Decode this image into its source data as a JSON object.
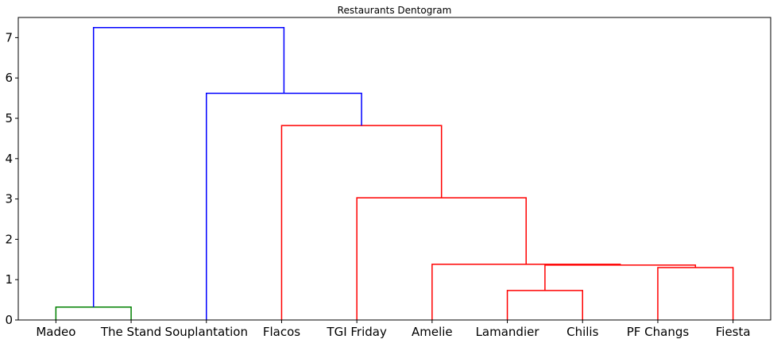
{
  "chart_data": {
    "type": "dendrogram",
    "title": "Restaurants Dentogram",
    "xlabel": "",
    "ylabel": "",
    "ylim": [
      0,
      7.5
    ],
    "yticks": [
      0,
      1,
      2,
      3,
      4,
      5,
      6,
      7
    ],
    "grid": false,
    "leaves": [
      "Madeo",
      "The Stand",
      "Souplantation",
      "Flacos",
      "TGI Friday",
      "Amelie",
      "Lamandier",
      "Chilis",
      "PF Changs",
      "Fiesta"
    ],
    "colors": {
      "cluster_green": "#008000",
      "cluster_red": "#ff0000",
      "link_blue": "#0000ff"
    },
    "links": [
      {
        "id": "madeo-thestand",
        "color": "cluster_green",
        "height": 0.32,
        "left": "Madeo",
        "right": "The Stand"
      },
      {
        "id": "lamandier-chilis",
        "color": "cluster_red",
        "height": 0.73,
        "left": "Lamandier",
        "right": "Chilis"
      },
      {
        "id": "pfchangs-fiesta",
        "color": "cluster_red",
        "height": 1.3,
        "left": "PF Changs",
        "right": "Fiesta"
      },
      {
        "id": "lc-pf",
        "color": "cluster_red",
        "height": 1.36,
        "left": "lamandier-chilis",
        "right": "pfchangs-fiesta"
      },
      {
        "id": "amelie-group",
        "color": "cluster_red",
        "height": 1.38,
        "left": "Amelie",
        "right": "lc-pf"
      },
      {
        "id": "tgi-group",
        "color": "cluster_red",
        "height": 3.03,
        "left": "TGI Friday",
        "right": "amelie-group"
      },
      {
        "id": "flacos-group",
        "color": "cluster_red",
        "height": 4.82,
        "left": "Flacos",
        "right": "tgi-group"
      },
      {
        "id": "souplantation-group",
        "color": "link_blue",
        "height": 5.62,
        "left": "Souplantation",
        "right": "flacos-group"
      },
      {
        "id": "root",
        "color": "link_blue",
        "height": 7.25,
        "left": "madeo-thestand",
        "right": "souplantation-group"
      }
    ]
  }
}
